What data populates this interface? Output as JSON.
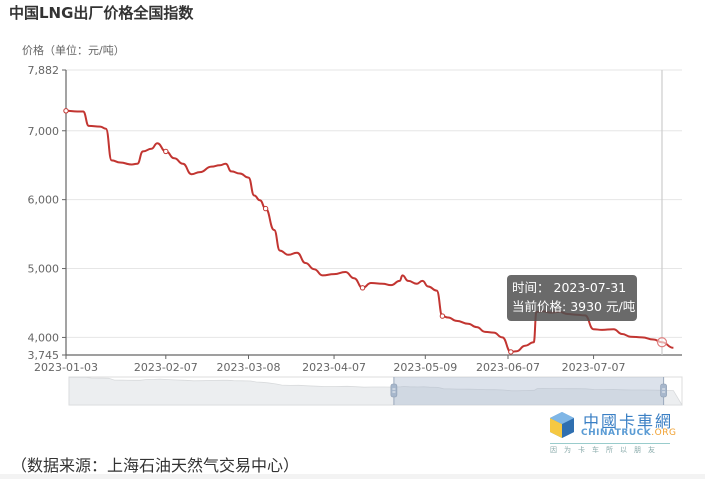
{
  "header": {
    "title": "中国LNG出厂价格全国指数",
    "y_unit_label": "价格（单位：元/吨）"
  },
  "tooltip": {
    "time_label": "时间：",
    "time_value": "2023-07-31",
    "price_label": "当前价格:",
    "price_value": "3930",
    "price_unit": "元/吨"
  },
  "footer": {
    "source": "（数据来源：上海石油天然气交易中心）"
  },
  "watermark": {
    "cn": "中國卡車網",
    "en_main": "CHINATRUCK",
    "en_suffix": ".ORG",
    "slogan": "因为卡车所以朋友"
  },
  "chart_data": {
    "type": "line",
    "title": "中国LNG出厂价格全国指数",
    "xlabel": "",
    "ylabel": "价格（单位：元/吨）",
    "ylim": [
      3745,
      7882
    ],
    "y_ticks": [
      3745,
      4000,
      5000,
      6000,
      7000,
      7882
    ],
    "y_tick_labels": [
      "3,745",
      "4,000",
      "5,000",
      "6,000",
      "7,000",
      "7,882"
    ],
    "x_ticks": [
      "2023-01-03",
      "2023-02-07",
      "2023-03-08",
      "2023-04-07",
      "2023-05-09",
      "2023-06-07",
      "2023-07-07"
    ],
    "grid": true,
    "legend": "none",
    "line_color": "#c23531",
    "series": [
      {
        "name": "当前价格",
        "points": [
          [
            "2023-01-03",
            7290
          ],
          [
            "2023-01-07",
            7280
          ],
          [
            "2023-01-09",
            7280
          ],
          [
            "2023-01-11",
            7070
          ],
          [
            "2023-01-15",
            7060
          ],
          [
            "2023-01-17",
            7030
          ],
          [
            "2023-01-19",
            6570
          ],
          [
            "2023-01-22",
            6540
          ],
          [
            "2023-01-26",
            6510
          ],
          [
            "2023-01-28",
            6520
          ],
          [
            "2023-01-30",
            6700
          ],
          [
            "2023-02-02",
            6740
          ],
          [
            "2023-02-04",
            6820
          ],
          [
            "2023-02-07",
            6700
          ],
          [
            "2023-02-10",
            6600
          ],
          [
            "2023-02-13",
            6520
          ],
          [
            "2023-02-16",
            6370
          ],
          [
            "2023-02-19",
            6400
          ],
          [
            "2023-02-23",
            6480
          ],
          [
            "2023-02-26",
            6500
          ],
          [
            "2023-02-28",
            6520
          ],
          [
            "2023-03-02",
            6410
          ],
          [
            "2023-03-05",
            6380
          ],
          [
            "2023-03-08",
            6320
          ],
          [
            "2023-03-10",
            6060
          ],
          [
            "2023-03-12",
            5990
          ],
          [
            "2023-03-14",
            5870
          ],
          [
            "2023-03-17",
            5560
          ],
          [
            "2023-03-19",
            5260
          ],
          [
            "2023-03-22",
            5200
          ],
          [
            "2023-03-25",
            5230
          ],
          [
            "2023-03-28",
            5080
          ],
          [
            "2023-03-31",
            4990
          ],
          [
            "2023-04-03",
            4900
          ],
          [
            "2023-04-07",
            4920
          ],
          [
            "2023-04-11",
            4950
          ],
          [
            "2023-04-14",
            4860
          ],
          [
            "2023-04-17",
            4720
          ],
          [
            "2023-04-20",
            4790
          ],
          [
            "2023-04-24",
            4780
          ],
          [
            "2023-04-27",
            4760
          ],
          [
            "2023-04-30",
            4820
          ],
          [
            "2023-05-01",
            4900
          ],
          [
            "2023-05-03",
            4820
          ],
          [
            "2023-05-06",
            4780
          ],
          [
            "2023-05-08",
            4820
          ],
          [
            "2023-05-10",
            4740
          ],
          [
            "2023-05-13",
            4680
          ],
          [
            "2023-05-15",
            4310
          ],
          [
            "2023-05-17",
            4290
          ],
          [
            "2023-05-20",
            4240
          ],
          [
            "2023-05-24",
            4200
          ],
          [
            "2023-05-27",
            4150
          ],
          [
            "2023-05-30",
            4080
          ],
          [
            "2023-06-02",
            4070
          ],
          [
            "2023-06-05",
            4000
          ],
          [
            "2023-06-08",
            3790
          ],
          [
            "2023-06-10",
            3800
          ],
          [
            "2023-06-13",
            3880
          ],
          [
            "2023-06-16",
            3930
          ],
          [
            "2023-06-17",
            4370
          ],
          [
            "2023-06-19",
            4380
          ],
          [
            "2023-06-22",
            4360
          ],
          [
            "2023-06-25",
            4370
          ],
          [
            "2023-06-28",
            4340
          ],
          [
            "2023-07-01",
            4330
          ],
          [
            "2023-07-04",
            4320
          ],
          [
            "2023-07-07",
            4120
          ],
          [
            "2023-07-10",
            4110
          ],
          [
            "2023-07-14",
            4120
          ],
          [
            "2023-07-17",
            4050
          ],
          [
            "2023-07-20",
            4010
          ],
          [
            "2023-07-24",
            4000
          ],
          [
            "2023-07-28",
            3970
          ],
          [
            "2023-07-31",
            3930
          ],
          [
            "2023-08-04",
            3850
          ]
        ]
      }
    ],
    "highlight": {
      "date": "2023-07-31",
      "value": 3930
    },
    "datazoom": {
      "start_percent": 53,
      "end_percent": 97
    }
  }
}
